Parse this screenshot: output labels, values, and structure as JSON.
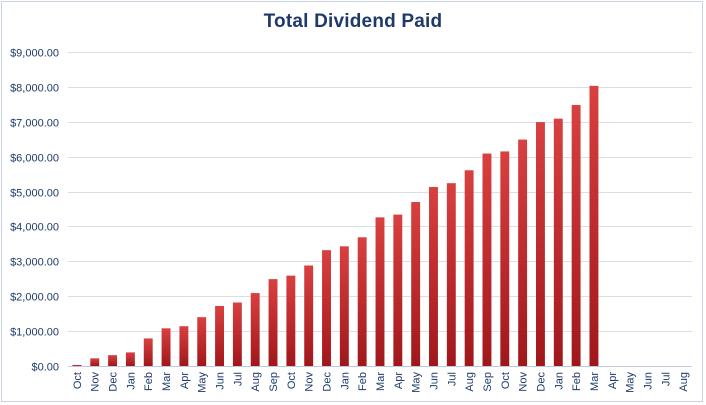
{
  "chart_data": {
    "type": "bar",
    "title": "Total Dividend Paid",
    "xlabel": "",
    "ylabel": "",
    "ylim": [
      0,
      9000
    ],
    "y_tick_values": [
      0,
      1000,
      2000,
      3000,
      4000,
      5000,
      6000,
      7000,
      8000,
      9000
    ],
    "y_tick_labels": [
      "$0.00",
      "$1,000.00",
      "$2,000.00",
      "$3,000.00",
      "$4,000.00",
      "$5,000.00",
      "$6,000.00",
      "$7,000.00",
      "$8,000.00",
      "$9,000.00"
    ],
    "grid": true,
    "legend": "none",
    "bar_color_top": "#d94040",
    "bar_color_bottom": "#a0171b",
    "categories": [
      "Oct",
      "Nov",
      "Dec",
      "Jan",
      "Feb",
      "Mar",
      "Apr",
      "May",
      "Jun",
      "Jul",
      "Aug",
      "Sep",
      "Oct",
      "Nov",
      "Dec",
      "Jan",
      "Feb",
      "Mar",
      "Apr",
      "May",
      "Jun",
      "Jul",
      "Aug",
      "Sep",
      "Oct",
      "Nov",
      "Dec",
      "Jan",
      "Feb",
      "Mar",
      "Apr",
      "May",
      "Jun",
      "Jul",
      "Aug"
    ],
    "values": [
      30,
      220,
      310,
      390,
      790,
      1080,
      1140,
      1400,
      1720,
      1820,
      2090,
      2490,
      2590,
      2880,
      3320,
      3430,
      3690,
      4260,
      4340,
      4700,
      5130,
      5240,
      5610,
      6090,
      6150,
      6490,
      6990,
      7090,
      7480,
      8030,
      null,
      null,
      null,
      null,
      null
    ]
  }
}
